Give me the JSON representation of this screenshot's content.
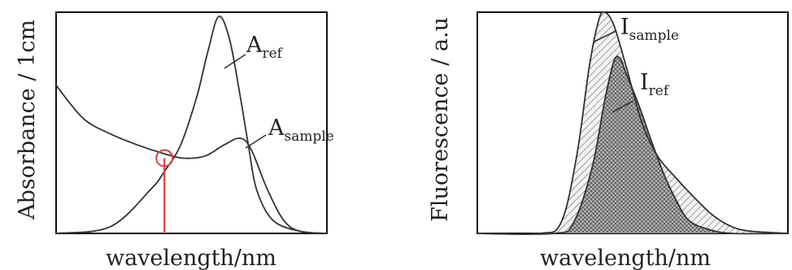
{
  "chart_data": [
    {
      "type": "line",
      "title": "",
      "xlabel": "wavelength/nm",
      "ylabel": "Absorbance / 1cm",
      "xlim": [
        0,
        100
      ],
      "ylim": [
        0,
        1
      ],
      "grid": false,
      "series": [
        {
          "name_main": "A",
          "name_sub": "ref",
          "color": "#333333",
          "points": [
            [
              0,
              0
            ],
            [
              20,
              0.03
            ],
            [
              35,
              0.2
            ],
            [
              40,
              0.28
            ],
            [
              46,
              0.4
            ],
            [
              52,
              0.62
            ],
            [
              56,
              0.82
            ],
            [
              60,
              0.98
            ],
            [
              64,
              0.88
            ],
            [
              68,
              0.62
            ],
            [
              71,
              0.4
            ],
            [
              74,
              0.2
            ],
            [
              80,
              0.06
            ],
            [
              90,
              0.01
            ],
            [
              100,
              0
            ]
          ]
        },
        {
          "name_main": "A",
          "name_sub": "sample",
          "color": "#333333",
          "points": [
            [
              0,
              0.67
            ],
            [
              10,
              0.52
            ],
            [
              20,
              0.45
            ],
            [
              30,
              0.4
            ],
            [
              40,
              0.36
            ],
            [
              47,
              0.34
            ],
            [
              55,
              0.35
            ],
            [
              62,
              0.4
            ],
            [
              68,
              0.43
            ],
            [
              72,
              0.38
            ],
            [
              78,
              0.2
            ],
            [
              84,
              0.06
            ],
            [
              90,
              0.01
            ],
            [
              100,
              0
            ]
          ]
        }
      ],
      "marker": {
        "type": "isosbestic",
        "color": "#d94040",
        "x": 40,
        "y": 0.34
      }
    },
    {
      "type": "area",
      "title": "",
      "xlabel": "wavelength/nm",
      "ylabel": "Fluorescence / a.u",
      "xlim": [
        0,
        100
      ],
      "ylim": [
        0,
        1
      ],
      "grid": false,
      "series": [
        {
          "name_main": "I",
          "name_sub": "sample",
          "color": "#333333",
          "fill": "diagonal-hatch",
          "points": [
            [
              0,
              0
            ],
            [
              20,
              0
            ],
            [
              27,
              0.05
            ],
            [
              32,
              0.35
            ],
            [
              36,
              0.75
            ],
            [
              39,
              0.96
            ],
            [
              41,
              1.0
            ],
            [
              44,
              0.94
            ],
            [
              48,
              0.75
            ],
            [
              53,
              0.5
            ],
            [
              58,
              0.35
            ],
            [
              64,
              0.25
            ],
            [
              70,
              0.16
            ],
            [
              76,
              0.08
            ],
            [
              82,
              0.03
            ],
            [
              88,
              0.01
            ],
            [
              100,
              0
            ]
          ]
        },
        {
          "name_main": "I",
          "name_sub": "ref",
          "color": "#333333",
          "fill": "cross-hatch",
          "points": [
            [
              0,
              0
            ],
            [
              25,
              0
            ],
            [
              31,
              0.05
            ],
            [
              37,
              0.3
            ],
            [
              41,
              0.6
            ],
            [
              44,
              0.78
            ],
            [
              46,
              0.79
            ],
            [
              48,
              0.72
            ],
            [
              52,
              0.58
            ],
            [
              56,
              0.42
            ],
            [
              60,
              0.27
            ],
            [
              64,
              0.15
            ],
            [
              68,
              0.06
            ],
            [
              74,
              0.02
            ],
            [
              82,
              0
            ],
            [
              100,
              0
            ]
          ]
        }
      ]
    }
  ]
}
